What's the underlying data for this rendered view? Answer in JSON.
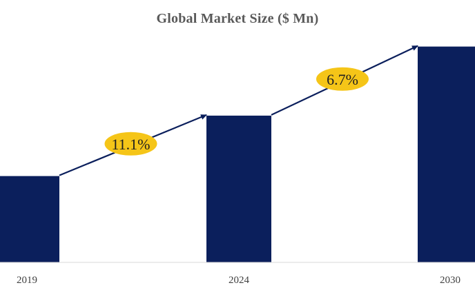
{
  "chart_data": {
    "type": "bar",
    "title": "Global Market Size ($ Mn)",
    "categories": [
      "2019",
      "2024",
      "2030"
    ],
    "values": [
      100,
      170,
      250
    ],
    "ylim": [
      0,
      280
    ],
    "grid": false,
    "annotations": [
      {
        "from": "2019",
        "to": "2024",
        "label": "11.1%"
      },
      {
        "from": "2024",
        "to": "2030",
        "label": "6.7%"
      }
    ]
  },
  "colors": {
    "bar": "#0b1f5c",
    "arrow": "#0b1f5c",
    "badge": "#f5c518",
    "baseline": "#d9d9d9"
  }
}
